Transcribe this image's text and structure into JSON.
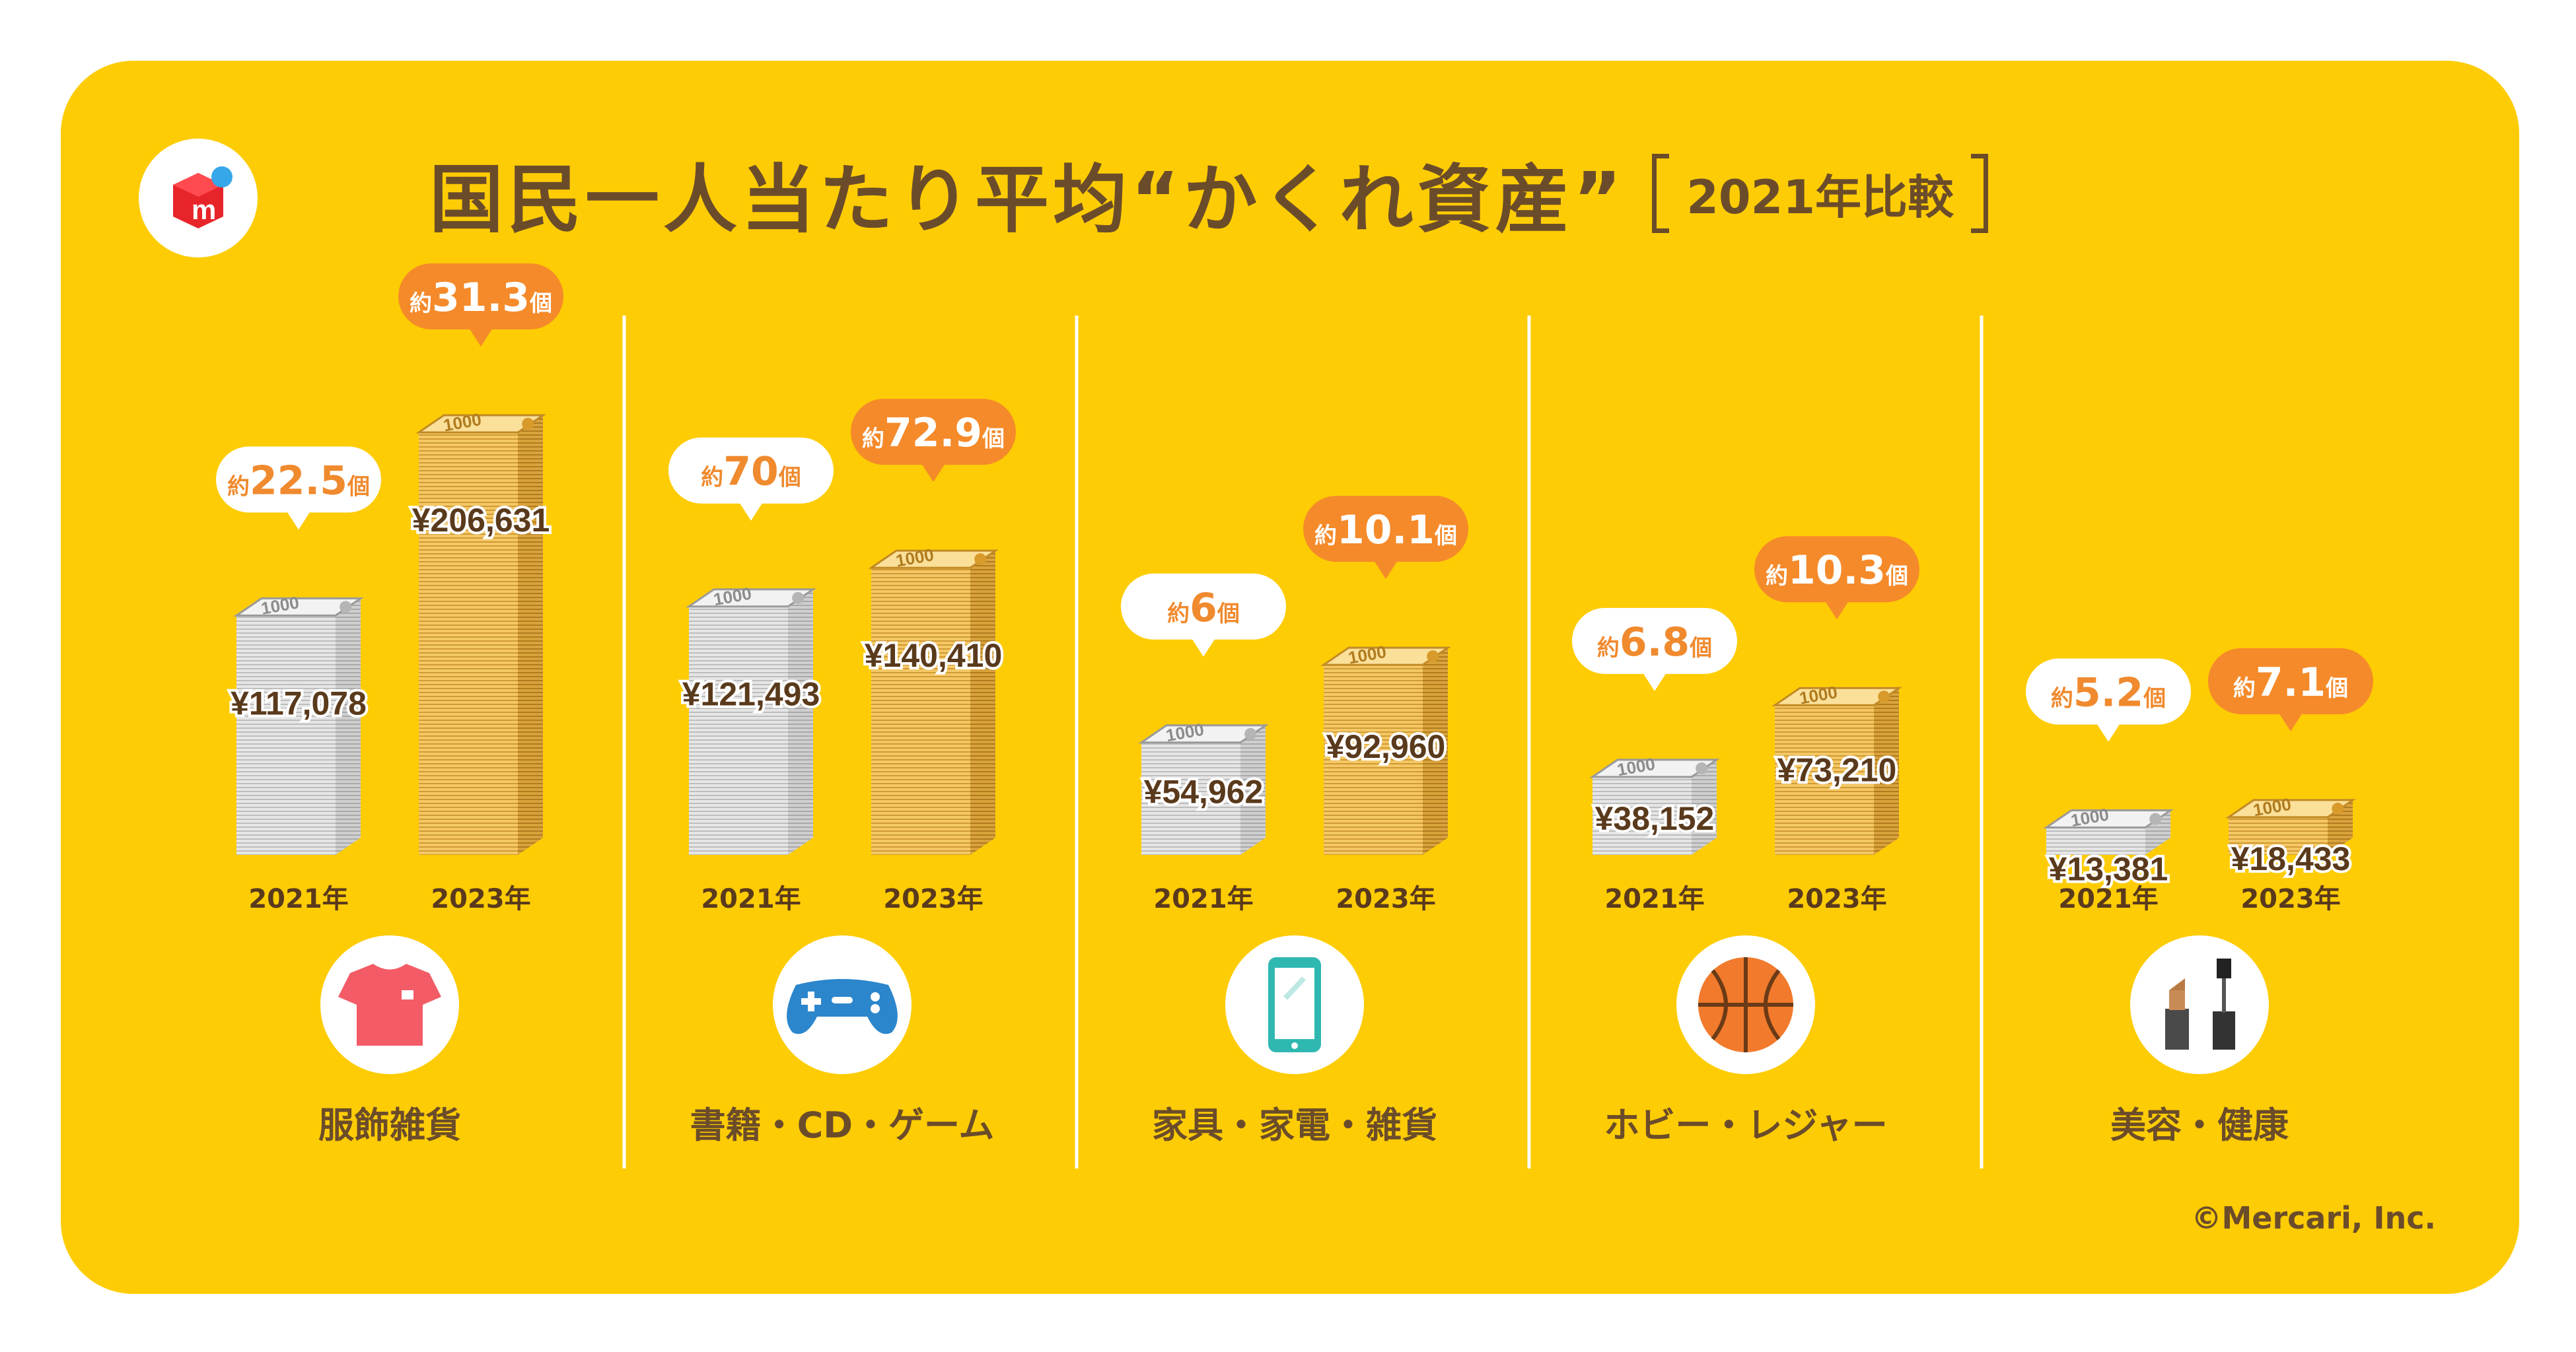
{
  "title": "国民一人当たり平均“かくれ資産”",
  "subtitle": "2021年比較",
  "copyright": "©Mercari, Inc.",
  "colors": {
    "background": "#fecc04",
    "text": "#6b4c2a",
    "bubble_2021_bg": "#ffffff",
    "bubble_2021_text": "#f08a2e",
    "bubble_2023_bg": "#f58a2a",
    "bubble_2023_text": "#ffffff",
    "stack_2021": "#dcdcdc",
    "stack_2023": "#f2c35a"
  },
  "chart_data": {
    "type": "bar",
    "categories": [
      "服飾雑貨",
      "書籍・CD・ゲーム",
      "家具・家電・雑貨",
      "ホビー・レジャー",
      "美容・健康"
    ],
    "category_icons": [
      "t-shirt-icon",
      "game-controller-icon",
      "smartphone-icon",
      "basketball-icon",
      "cosmetics-icon"
    ],
    "x_labels": [
      "2021年",
      "2023年"
    ],
    "value_prefix": "¥",
    "count_prefix": "約",
    "count_suffix": "個",
    "series": [
      {
        "values": [
          117078,
          121493,
          54962,
          38152,
          13381
        ],
        "labels": [
          "¥117,078",
          "¥121,493",
          "¥54,962",
          "¥38,152",
          "¥13,381"
        ],
        "counts": [
          "22.5",
          "70",
          "6",
          "6.8",
          "5.2"
        ]
      },
      {
        "values": [
          206631,
          140410,
          92960,
          73210,
          18433
        ],
        "labels": [
          "¥206,631",
          "¥140,410",
          "¥92,960",
          "¥73,210",
          "¥18,433"
        ],
        "counts": [
          "31.3",
          "72.9",
          "10.1",
          "10.3",
          "7.1"
        ]
      }
    ],
    "note_label": "1000"
  }
}
